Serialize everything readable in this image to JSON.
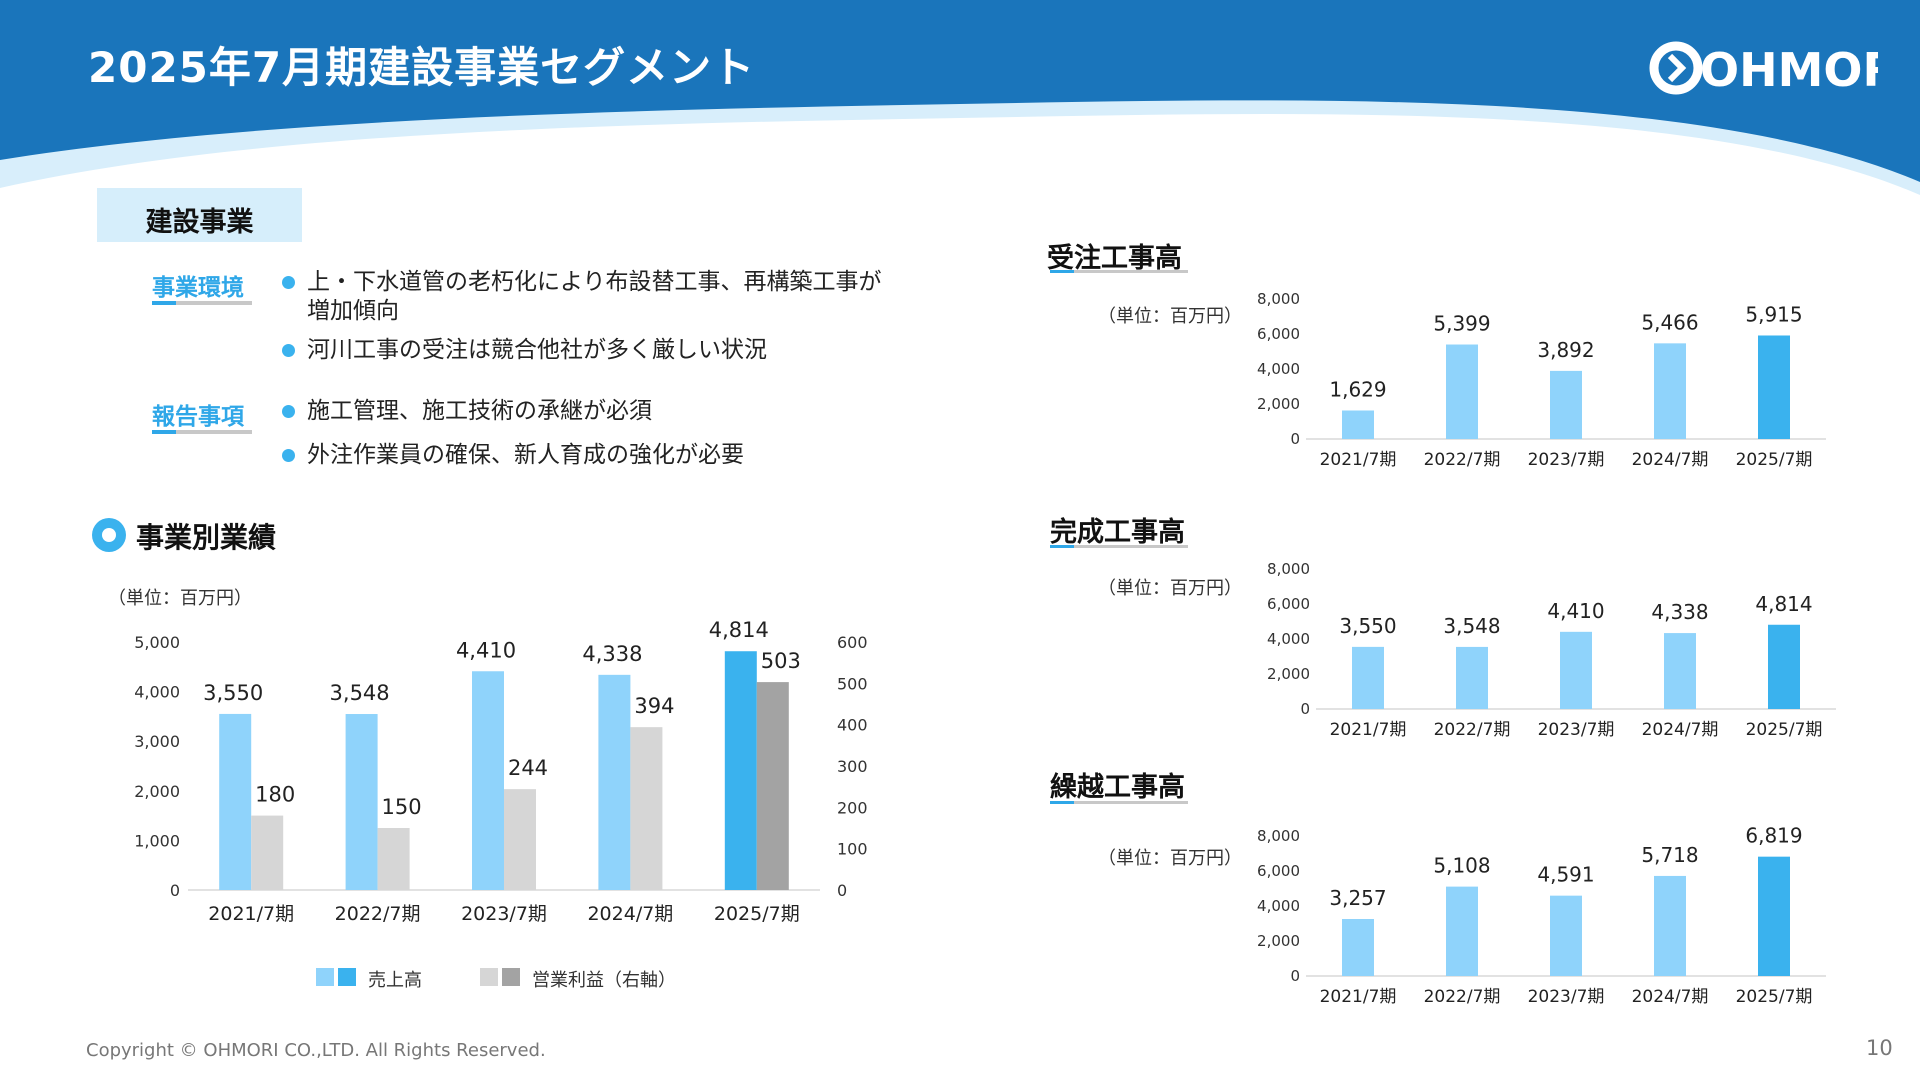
{
  "page_title": "2025年7月期建設事業セグメント",
  "logo_text": "OHMORI",
  "section_label": "建設事業",
  "tags": {
    "environment": "事業環境",
    "report": "報告事項"
  },
  "bullets": {
    "environment": [
      "上・下水道管の老朽化により布設替工事、再構築工事が",
      "増加傾向",
      "河川工事の受注は競合他社が多く厳しい状況"
    ],
    "report": [
      "施工管理、施工技術の承継が必須",
      "外注作業員の確保、新人育成の強化が必要"
    ]
  },
  "performance_title": "事業別業績",
  "unit_label": "（単位：百万円）",
  "legend": {
    "sales": "売上高",
    "profit": "営業利益（右軸）"
  },
  "colors": {
    "brand_blue": "#1a75bb",
    "bar_light": "#8fd3fb",
    "bar_highlight": "#3ab2ee",
    "profit_light": "#d6d6d6",
    "profit_highlight": "#a3a3a3"
  },
  "chart_data": [
    {
      "type": "bar",
      "categories": [
        "2021/7期",
        "2022/7期",
        "2023/7期",
        "2024/7期",
        "2025/7期"
      ],
      "series": [
        {
          "name": "売上高",
          "values": [
            3550,
            3548,
            4410,
            4338,
            4814
          ],
          "labels": [
            "3,550",
            "3,548",
            "4,410",
            "4,338",
            "4,814"
          ]
        },
        {
          "name": "営業利益（右軸）",
          "values": [
            180,
            150,
            244,
            394,
            503
          ],
          "labels": [
            "180",
            "150",
            "244",
            "394",
            "503"
          ]
        }
      ],
      "ylim": [
        0,
        5000
      ],
      "yticks": [
        "0",
        "1,000",
        "2,000",
        "3,000",
        "4,000",
        "5,000"
      ],
      "y2lim": [
        0,
        600
      ],
      "y2ticks": [
        "0",
        "100",
        "200",
        "300",
        "400",
        "500",
        "600"
      ]
    },
    {
      "type": "bar",
      "title": "受注工事高",
      "categories": [
        "2021/7期",
        "2022/7期",
        "2023/7期",
        "2024/7期",
        "2025/7期"
      ],
      "values": [
        1629,
        5399,
        3892,
        5466,
        5915
      ],
      "labels": [
        "1,629",
        "5,399",
        "3,892",
        "5,466",
        "5,915"
      ],
      "ylim": [
        0,
        8000
      ],
      "yticks": [
        "0",
        "2,000",
        "4,000",
        "6,000",
        "8,000"
      ]
    },
    {
      "type": "bar",
      "title": "完成工事高",
      "categories": [
        "2021/7期",
        "2022/7期",
        "2023/7期",
        "2024/7期",
        "2025/7期"
      ],
      "values": [
        3550,
        3548,
        4410,
        4338,
        4814
      ],
      "labels": [
        "3,550",
        "3,548",
        "4,410",
        "4,338",
        "4,814"
      ],
      "ylim": [
        0,
        8000
      ],
      "yticks": [
        "0",
        "2,000",
        "4,000",
        "6,000",
        "8,000"
      ]
    },
    {
      "type": "bar",
      "title": "繰越工事高",
      "categories": [
        "2021/7期",
        "2022/7期",
        "2023/7期",
        "2024/7期",
        "2025/7期"
      ],
      "values": [
        3257,
        5108,
        4591,
        5718,
        6819
      ],
      "labels": [
        "3,257",
        "5,108",
        "4,591",
        "5,718",
        "6,819"
      ],
      "ylim": [
        0,
        8000
      ],
      "yticks": [
        "0",
        "2,000",
        "4,000",
        "6,000",
        "8,000"
      ]
    }
  ],
  "copyright": "Copyright © OHMORI CO.,LTD. All Rights Reserved.",
  "page_number": "10"
}
